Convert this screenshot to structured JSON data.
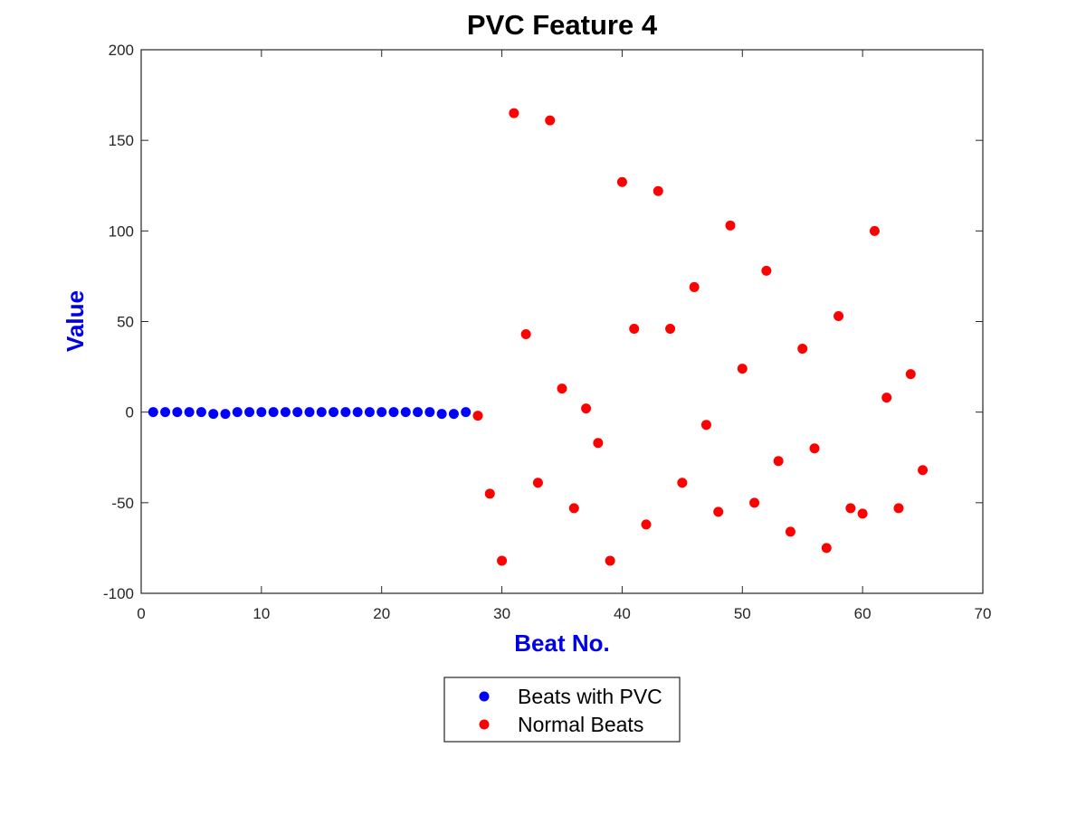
{
  "chart_data": {
    "type": "scatter",
    "title": "PVC Feature 4",
    "xlabel": "Beat No.",
    "ylabel": "Value",
    "xlim": [
      0,
      70
    ],
    "ylim": [
      -100,
      200
    ],
    "xticks": [
      0,
      10,
      20,
      30,
      40,
      50,
      60,
      70
    ],
    "yticks": [
      -100,
      -50,
      0,
      50,
      100,
      150,
      200
    ],
    "grid": false,
    "legend_position": "bottom-center, outside plot",
    "label_color": "#0000e6",
    "series": [
      {
        "name": "Beats with PVC",
        "color": "#0000ff",
        "x": [
          1,
          2,
          3,
          4,
          5,
          6,
          7,
          8,
          9,
          10,
          11,
          12,
          13,
          14,
          15,
          16,
          17,
          18,
          19,
          20,
          21,
          22,
          23,
          24,
          25,
          26,
          27
        ],
        "y": [
          0,
          0,
          0,
          0,
          0,
          -1,
          -1,
          0,
          0,
          0,
          0,
          0,
          0,
          0,
          0,
          0,
          0,
          0,
          0,
          0,
          0,
          0,
          0,
          0,
          -1,
          -1,
          0
        ]
      },
      {
        "name": "Normal Beats",
        "color": "#ff0000",
        "x": [
          28,
          29,
          30,
          31,
          32,
          33,
          34,
          35,
          36,
          37,
          38,
          39,
          40,
          41,
          42,
          43,
          44,
          45,
          46,
          47,
          48,
          49,
          50,
          51,
          52,
          53,
          54,
          55,
          56,
          57,
          58,
          59,
          60,
          61,
          62,
          63,
          64,
          65
        ],
        "y": [
          -2,
          -45,
          -82,
          165,
          43,
          -39,
          161,
          13,
          -53,
          2,
          -17,
          -82,
          127,
          46,
          -62,
          122,
          46,
          -39,
          69,
          -7,
          -55,
          103,
          24,
          -50,
          78,
          -27,
          -66,
          35,
          -20,
          -75,
          53,
          -53,
          -56,
          100,
          8,
          -53,
          21,
          -32
        ]
      }
    ]
  }
}
